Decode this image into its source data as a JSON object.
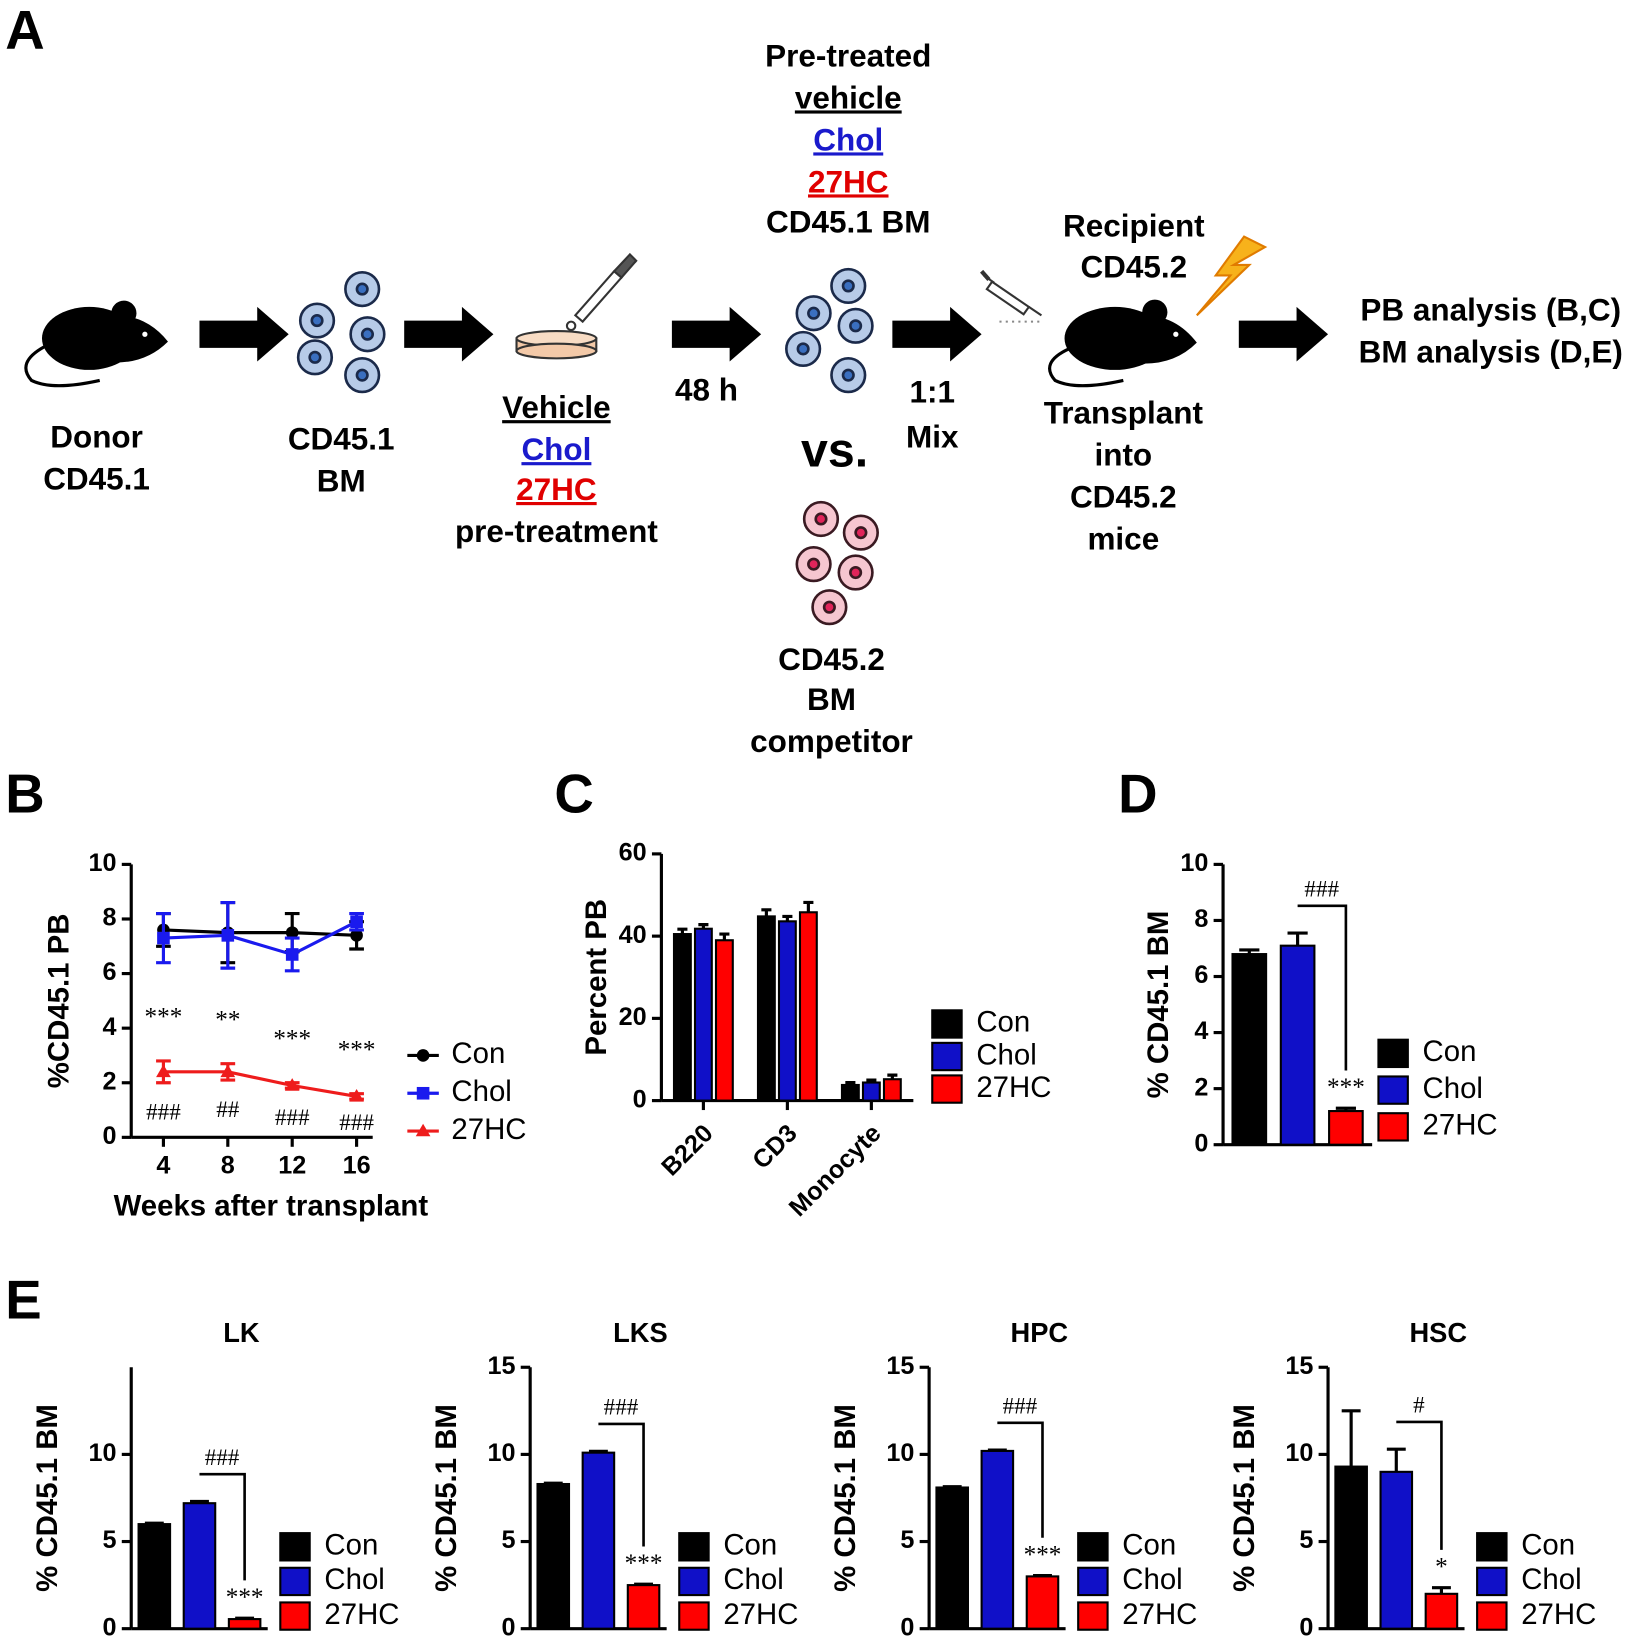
{
  "panel_labels": [
    "A",
    "B",
    "C",
    "D",
    "E"
  ],
  "diagram": {
    "donor": [
      "Donor",
      "CD45.1"
    ],
    "bm": [
      "CD45.1",
      "BM"
    ],
    "treatment": [
      "Vehicle",
      "Chol",
      "27HC",
      "pre-treatment"
    ],
    "incubation": "48 h",
    "pretreated": [
      "Pre-treated",
      "vehicle",
      "Chol",
      "27HC",
      "CD45.1 BM"
    ],
    "versus": "vs.",
    "competitor": [
      "CD45.2",
      "BM",
      "competitor"
    ],
    "mix": [
      "1:1",
      "Mix"
    ],
    "recipient": [
      "Recipient",
      "CD45.2"
    ],
    "transplant": [
      "Transplant",
      "into",
      "CD45.2",
      "mice"
    ],
    "analysis": [
      "PB analysis (B,C)",
      "BM analysis (D,E)"
    ]
  },
  "chart_data": [
    {
      "type": "line",
      "ylabel": "%CD45.1 PB",
      "xlabel": "Weeks after transplant",
      "x": [
        4,
        8,
        12,
        16
      ],
      "xlim": [
        2,
        17
      ],
      "xticks": [
        4,
        8,
        12,
        16
      ],
      "ylim": [
        0,
        10
      ],
      "yticks": [
        0,
        2,
        4,
        6,
        8,
        10
      ],
      "series": [
        {
          "name": "Con",
          "color": "#000000",
          "marker": "circle",
          "values": [
            7.6,
            7.5,
            7.5,
            7.4
          ],
          "errors": [
            0.6,
            1.1,
            0.7,
            0.5
          ]
        },
        {
          "name": "Chol",
          "color": "#1a1aee",
          "marker": "square",
          "values": [
            7.3,
            7.4,
            6.7,
            7.9
          ],
          "errors": [
            0.9,
            1.2,
            0.6,
            0.3
          ]
        },
        {
          "name": "27HC",
          "color": "#ee1c1c",
          "marker": "triangle",
          "values": [
            2.4,
            2.4,
            1.9,
            1.5
          ],
          "errors": [
            0.4,
            0.3,
            0.1,
            0.1
          ],
          "annotations_above": [
            "***",
            "**",
            "***",
            "***"
          ],
          "annotations_below": [
            "###",
            "##",
            "###",
            "###"
          ]
        }
      ]
    },
    {
      "type": "bar",
      "ylabel": "Percent PB",
      "categories": [
        "B220",
        "CD3",
        "Monocyte"
      ],
      "ylim": [
        0,
        60
      ],
      "yticks": [
        0,
        20,
        40,
        60
      ],
      "series": [
        {
          "name": "Con",
          "color": "#000000",
          "values": [
            40.5,
            44.8,
            3.8
          ],
          "errors": [
            1.2,
            1.6,
            0.6
          ]
        },
        {
          "name": "Chol",
          "color": "#1010c8",
          "values": [
            41.8,
            43.6,
            4.4
          ],
          "errors": [
            1.0,
            1.2,
            0.6
          ]
        },
        {
          "name": "27HC",
          "color": "#ff0000",
          "values": [
            39.0,
            45.8,
            5.2
          ],
          "errors": [
            1.5,
            2.4,
            1.0
          ]
        }
      ]
    },
    {
      "type": "bar",
      "ylabel": "% CD45.1 BM",
      "ylim": [
        0,
        10
      ],
      "yticks": [
        0,
        2,
        4,
        6,
        8,
        10
      ],
      "bracket_label": "###",
      "series": [
        {
          "name": "Con",
          "color": "#000000",
          "values": [
            6.8
          ],
          "errors": [
            0.15
          ]
        },
        {
          "name": "Chol",
          "color": "#1010c8",
          "values": [
            7.1
          ],
          "errors": [
            0.45
          ]
        },
        {
          "name": "27HC",
          "color": "#ff0000",
          "values": [
            1.2
          ],
          "errors": [
            0.1
          ],
          "annotation": "***"
        }
      ]
    },
    {
      "type": "bar",
      "title": "LK",
      "ylabel": "% CD45.1 BM",
      "ylim": [
        0,
        15
      ],
      "yticks": [
        0,
        5,
        10
      ],
      "bracket_label": "###",
      "series": [
        {
          "name": "Con",
          "color": "#000000",
          "values": [
            6.0
          ],
          "errors": [
            0.05
          ]
        },
        {
          "name": "Chol",
          "color": "#1010c8",
          "values": [
            7.2
          ],
          "errors": [
            0.1
          ]
        },
        {
          "name": "27HC",
          "color": "#ff0000",
          "values": [
            0.55
          ],
          "errors": [
            0.05
          ],
          "annotation": "***"
        }
      ]
    },
    {
      "type": "bar",
      "title": "LKS",
      "ylabel": "% CD45.1 BM",
      "ylim": [
        0,
        15
      ],
      "yticks": [
        0,
        5,
        10,
        15
      ],
      "bracket_label": "###",
      "series": [
        {
          "name": "Con",
          "color": "#000000",
          "values": [
            8.3
          ],
          "errors": [
            0.05
          ]
        },
        {
          "name": "Chol",
          "color": "#1010c8",
          "values": [
            10.1
          ],
          "errors": [
            0.08
          ]
        },
        {
          "name": "27HC",
          "color": "#ff0000",
          "values": [
            2.5
          ],
          "errors": [
            0.05
          ],
          "annotation": "***"
        }
      ]
    },
    {
      "type": "bar",
      "title": "HPC",
      "ylabel": "% CD45.1 BM",
      "ylim": [
        0,
        15
      ],
      "yticks": [
        0,
        5,
        10,
        15
      ],
      "bracket_label": "###",
      "series": [
        {
          "name": "Con",
          "color": "#000000",
          "values": [
            8.1
          ],
          "errors": [
            0.05
          ]
        },
        {
          "name": "Chol",
          "color": "#1010c8",
          "values": [
            10.2
          ],
          "errors": [
            0.05
          ]
        },
        {
          "name": "27HC",
          "color": "#ff0000",
          "values": [
            3.0
          ],
          "errors": [
            0.05
          ],
          "annotation": "***"
        }
      ]
    },
    {
      "type": "bar",
      "title": "HSC",
      "ylabel": "% CD45.1 BM",
      "ylim": [
        0,
        15
      ],
      "yticks": [
        0,
        5,
        10,
        15
      ],
      "bracket_label": "#",
      "series": [
        {
          "name": "Con",
          "color": "#000000",
          "values": [
            9.3
          ],
          "errors": [
            3.2
          ]
        },
        {
          "name": "Chol",
          "color": "#1010c8",
          "values": [
            9.0
          ],
          "errors": [
            1.3
          ]
        },
        {
          "name": "27HC",
          "color": "#ff0000",
          "values": [
            2.0
          ],
          "errors": [
            0.35
          ],
          "annotation": "*"
        }
      ]
    }
  ]
}
